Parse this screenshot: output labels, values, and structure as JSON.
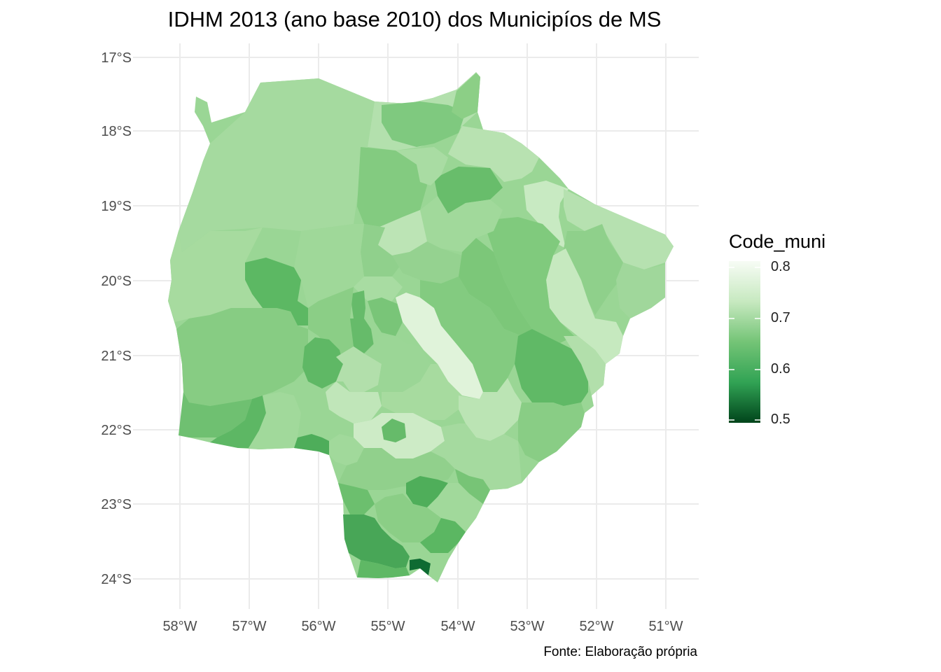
{
  "title": "IDHM 2013 (ano base 2010) dos Municipíos de MS",
  "caption": "Fonte: Elaboração própria",
  "x_axis_ticks": [
    "58°W",
    "57°W",
    "56°W",
    "55°W",
    "54°W",
    "53°W",
    "52°W",
    "51°W"
  ],
  "y_axis_ticks": [
    "17°S",
    "18°S",
    "19°S",
    "20°S",
    "21°S",
    "22°S",
    "23°S",
    "24°S"
  ],
  "legend": {
    "title": "Code_muni",
    "labels": [
      "0.8",
      "0.7",
      "0.6",
      "0.5"
    ],
    "range": [
      0.49,
      0.81
    ],
    "color_low": "#00441b",
    "color_high": "#f7fcf5"
  },
  "fill_colors": {
    "light": "#e5f5e0",
    "pale": "#c7e9c0",
    "medium_light": "#a1d99b",
    "medium": "#7fc97f",
    "medium_dark": "#5cb863",
    "dark": "#3a9f4f",
    "darkest": "#0b6b30"
  },
  "colors": {
    "grid": "#ebebeb",
    "base_fill": "#9ad695"
  }
}
